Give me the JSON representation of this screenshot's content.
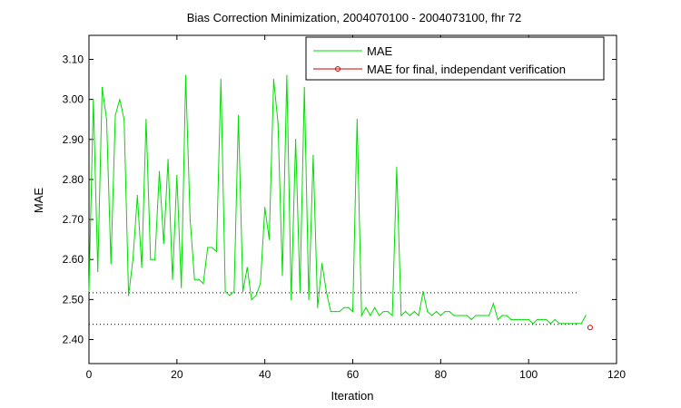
{
  "chart_data": {
    "type": "line",
    "title": "Bias Correction Minimization, 2004070100 - 2004073100, fhr 72",
    "xlabel": "Iteration",
    "ylabel": "MAE",
    "xlim": [
      0,
      120
    ],
    "ylim": [
      2.34,
      3.16
    ],
    "xticks": [
      0,
      20,
      40,
      60,
      80,
      100,
      120
    ],
    "yticks": [
      2.4,
      2.5,
      2.6,
      2.7,
      2.8,
      2.9,
      3.0,
      3.1
    ],
    "xtick_labels": [
      "0",
      "20",
      "40",
      "60",
      "80",
      "100",
      "120"
    ],
    "ytick_labels": [
      "2.40",
      "2.50",
      "2.60",
      "2.70",
      "2.80",
      "2.90",
      "3.00",
      "3.10"
    ],
    "grid": false,
    "legend_position": "top-right",
    "legend": [
      "MAE",
      "MAE for final, independant verification"
    ],
    "series": [
      {
        "name": "MAE",
        "color": "#00dd00",
        "style": "line",
        "x": [
          0,
          1,
          2,
          3,
          4,
          5,
          6,
          7,
          8,
          9,
          10,
          11,
          12,
          13,
          14,
          15,
          16,
          17,
          18,
          19,
          20,
          21,
          22,
          23,
          24,
          25,
          26,
          27,
          28,
          29,
          30,
          31,
          32,
          33,
          34,
          35,
          36,
          37,
          38,
          39,
          40,
          41,
          42,
          43,
          44,
          45,
          46,
          47,
          48,
          49,
          50,
          51,
          52,
          53,
          54,
          55,
          56,
          57,
          58,
          59,
          60,
          61,
          62,
          63,
          64,
          65,
          66,
          67,
          68,
          69,
          70,
          71,
          72,
          73,
          74,
          75,
          76,
          77,
          78,
          79,
          80,
          81,
          82,
          83,
          84,
          85,
          86,
          87,
          88,
          89,
          90,
          91,
          92,
          93,
          94,
          95,
          96,
          97,
          98,
          99,
          100,
          101,
          102,
          103,
          104,
          105,
          106,
          107,
          108,
          109,
          110,
          111,
          112,
          113
        ],
        "values": [
          2.52,
          3.0,
          2.57,
          3.03,
          2.95,
          2.59,
          2.96,
          3.0,
          2.95,
          2.51,
          2.6,
          2.76,
          2.58,
          2.95,
          2.6,
          2.6,
          2.82,
          2.64,
          2.85,
          2.55,
          2.81,
          2.53,
          3.06,
          2.7,
          2.55,
          2.55,
          2.54,
          2.63,
          2.63,
          2.62,
          3.05,
          2.52,
          2.51,
          2.52,
          2.96,
          2.52,
          2.58,
          2.5,
          2.51,
          2.54,
          2.73,
          2.65,
          3.05,
          2.94,
          2.56,
          3.06,
          2.5,
          2.9,
          2.52,
          3.03,
          2.5,
          2.86,
          2.48,
          2.59,
          2.52,
          2.47,
          2.47,
          2.47,
          2.48,
          2.48,
          2.47,
          2.95,
          2.46,
          2.48,
          2.46,
          2.48,
          2.46,
          2.47,
          2.47,
          2.46,
          2.83,
          2.46,
          2.47,
          2.46,
          2.47,
          2.46,
          2.52,
          2.47,
          2.46,
          2.47,
          2.46,
          2.47,
          2.47,
          2.46,
          2.46,
          2.46,
          2.46,
          2.45,
          2.46,
          2.46,
          2.46,
          2.46,
          2.49,
          2.45,
          2.46,
          2.46,
          2.45,
          2.45,
          2.45,
          2.45,
          2.45,
          2.44,
          2.45,
          2.45,
          2.45,
          2.44,
          2.45,
          2.44,
          2.44,
          2.44,
          2.44,
          2.44,
          2.44,
          2.46
        ]
      },
      {
        "name": "MAE for final, independant verification",
        "color": "#cc0000",
        "style": "marker",
        "x": [
          114
        ],
        "values": [
          2.43
        ]
      }
    ],
    "reference_lines": [
      {
        "y": 2.517,
        "style": "dotted"
      },
      {
        "y": 2.438,
        "style": "dotted"
      }
    ]
  }
}
